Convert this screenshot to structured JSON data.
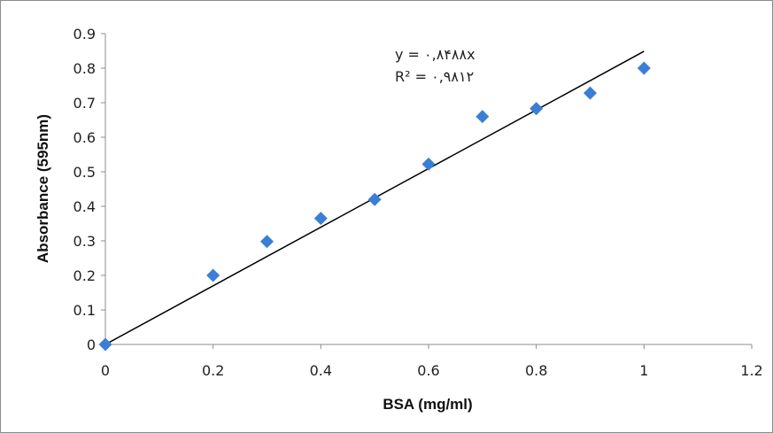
{
  "chart_data": {
    "type": "scatter",
    "title": "",
    "xlabel": "BSA (mg/ml)",
    "ylabel": "Absorbance (595nm)",
    "xlim": [
      0,
      1.2
    ],
    "ylim": [
      0,
      0.9
    ],
    "x_ticks": [
      "0",
      "0.2",
      "0.4",
      "0.6",
      "0.8",
      "1",
      "1.2"
    ],
    "y_ticks": [
      "0",
      "0.1",
      "0.2",
      "0.3",
      "0.4",
      "0.5",
      "0.6",
      "0.7",
      "0.8",
      "0.9"
    ],
    "grid": false,
    "legend": "none",
    "marker": "diamond",
    "marker_color": "#3a7fd5",
    "trendline_color": "#000000",
    "series": [
      {
        "x": [
          0,
          0.2,
          0.3,
          0.4,
          0.5,
          0.6,
          0.7,
          0.8,
          0.9,
          1.0
        ],
        "y": [
          0,
          0.2,
          0.298,
          0.365,
          0.42,
          0.522,
          0.66,
          0.683,
          0.728,
          0.8
        ]
      }
    ],
    "trendline": {
      "type": "linear",
      "intercept": 0,
      "slope": 0.8488,
      "x_range": [
        0,
        1.0
      ]
    },
    "annotations": {
      "equation": "y = ۰,۸۴۸۸x",
      "r_squared": "R² = ۰,۹۸۱۲"
    }
  }
}
